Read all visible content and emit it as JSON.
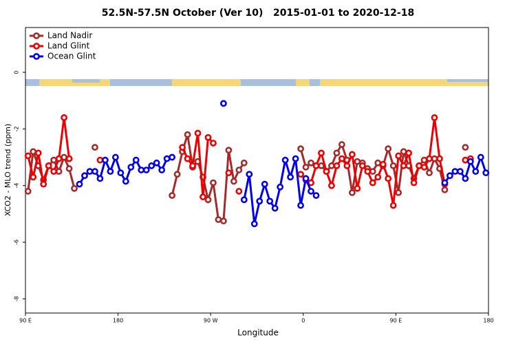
{
  "chart_data": {
    "type": "line",
    "title": "52.5N-57.5N October (Ver 10)   2015-01-01 to 2020-12-18",
    "x_label": "Longitude",
    "y_label": "XCO2 - MLO trend (ppm)",
    "x": [
      92.5,
      97.5,
      102.5,
      107.5,
      112.5,
      117.5,
      122.5,
      127.5,
      132.5,
      137.5,
      142.5,
      147.5,
      152.5,
      157.5,
      162.5,
      167.5,
      172.5,
      177.5,
      182.5,
      187.5,
      192.5,
      197.5,
      202.5,
      207.5,
      212.5,
      217.5,
      222.5,
      227.5,
      232.5,
      237.5,
      242.5,
      247.5,
      252.5,
      257.5,
      262.5,
      267.5,
      272.5,
      277.5,
      282.5,
      287.5,
      292.5,
      297.5,
      302.5,
      307.5,
      312.5,
      317.5,
      322.5,
      327.5,
      332.5,
      337.5,
      342.5,
      347.5,
      352.5,
      357.5,
      362.5,
      367.5,
      372.5,
      377.5,
      382.5,
      387.5,
      392.5,
      397.5,
      402.5,
      407.5,
      412.5,
      417.5,
      422.5,
      427.5,
      432.5,
      437.5,
      442.5,
      447.5,
      452.5,
      457.5,
      462.5,
      467.5,
      472.5,
      477.5,
      482.5,
      487.5,
      492.5,
      497.5,
      502.5,
      507.5,
      512.5,
      517.5,
      522.5,
      527.5,
      532.5,
      537.5
    ],
    "series": [
      {
        "name": "Land Nadir",
        "color": "#a52a2a",
        "values": [
          -4.2,
          -2.8,
          -3.3,
          -3.8,
          -3.3,
          -3.1,
          -3.5,
          -3.0,
          -3.4,
          -4.1,
          null,
          null,
          null,
          -2.65,
          null,
          null,
          null,
          null,
          null,
          null,
          null,
          null,
          null,
          null,
          null,
          null,
          null,
          null,
          -4.35,
          -3.6,
          -2.8,
          -2.2,
          -3.35,
          -3.15,
          -3.7,
          -4.5,
          -3.9,
          -5.2,
          -5.25,
          -2.75,
          -3.85,
          -3.45,
          -3.2,
          null,
          null,
          null,
          null,
          null,
          null,
          null,
          null,
          null,
          null,
          -2.7,
          -3.35,
          -3.2,
          -3.3,
          -3.3,
          -3.5,
          -3.3,
          -2.85,
          -2.55,
          -3.1,
          -4.25,
          -3.15,
          -3.2,
          -3.4,
          -3.5,
          -3.2,
          -3.3,
          -2.7,
          -3.3,
          -4.25,
          -2.8,
          -3.3,
          -3.75,
          -3.3,
          -3.1,
          -3.55,
          -3.05,
          -3.4,
          -4.15,
          null,
          null,
          null,
          -2.65,
          null,
          null,
          null,
          null
        ]
      },
      {
        "name": "Land Glint",
        "color": "#ee0000",
        "values": [
          -2.95,
          -3.7,
          -2.85,
          -3.95,
          -3.3,
          -3.5,
          -3.05,
          -1.6,
          -3.05,
          null,
          null,
          null,
          null,
          null,
          -3.1,
          null,
          null,
          null,
          null,
          null,
          null,
          null,
          null,
          null,
          null,
          null,
          null,
          null,
          null,
          null,
          -2.65,
          -3.05,
          -3.3,
          -2.15,
          -4.4,
          -2.3,
          -2.5,
          null,
          null,
          -3.55,
          null,
          -4.2,
          null,
          null,
          null,
          null,
          null,
          null,
          null,
          null,
          null,
          null,
          null,
          -3.6,
          -3.8,
          -3.9,
          -3.3,
          -2.85,
          -3.5,
          -4.0,
          -3.3,
          -3.05,
          -3.3,
          -2.9,
          -4.1,
          -3.3,
          -3.5,
          -3.9,
          -3.7,
          -3.25,
          -3.75,
          -4.7,
          -2.95,
          -3.3,
          -2.85,
          -3.9,
          -3.3,
          -3.35,
          -3.05,
          -1.6,
          -3.05,
          -3.95,
          null,
          null,
          null,
          -3.1,
          -3.05,
          null,
          null,
          null
        ]
      },
      {
        "name": "Ocean Glint",
        "color": "#0000ee",
        "values": [
          null,
          null,
          null,
          null,
          null,
          null,
          null,
          null,
          null,
          null,
          -3.95,
          -3.65,
          -3.5,
          -3.5,
          -3.75,
          -3.1,
          -3.5,
          -3.0,
          -3.55,
          -3.85,
          -3.35,
          -3.1,
          -3.45,
          -3.45,
          -3.3,
          -3.2,
          -3.45,
          -3.05,
          -3.0,
          null,
          null,
          null,
          null,
          null,
          null,
          null,
          null,
          null,
          -1.1,
          null,
          null,
          null,
          -4.5,
          -3.6,
          -5.35,
          -4.55,
          -3.95,
          -4.55,
          -4.8,
          -4.05,
          -3.1,
          -3.7,
          -3.05,
          -4.7,
          -3.75,
          -4.2,
          -4.35,
          null,
          null,
          null,
          null,
          null,
          null,
          null,
          null,
          null,
          null,
          null,
          null,
          null,
          null,
          null,
          null,
          null,
          null,
          null,
          null,
          null,
          null,
          null,
          null,
          -3.9,
          -3.65,
          -3.5,
          -3.5,
          -3.75,
          -3.15,
          -3.5,
          -3.0,
          -3.55
        ]
      }
    ],
    "xlim": [
      90,
      540
    ],
    "xticks": [
      {
        "value": 90,
        "label": "90 E"
      },
      180,
      {
        "value": 270,
        "label": "90 W"
      },
      {
        "value": 360,
        "label": "0"
      },
      {
        "value": 450,
        "label": "90 E"
      },
      {
        "value": 540,
        "label": "180"
      }
    ],
    "ylim": [
      -8.5,
      1.58
    ],
    "yticks": [
      0,
      -2,
      -4,
      -6,
      -8
    ],
    "legend": "top-left"
  }
}
